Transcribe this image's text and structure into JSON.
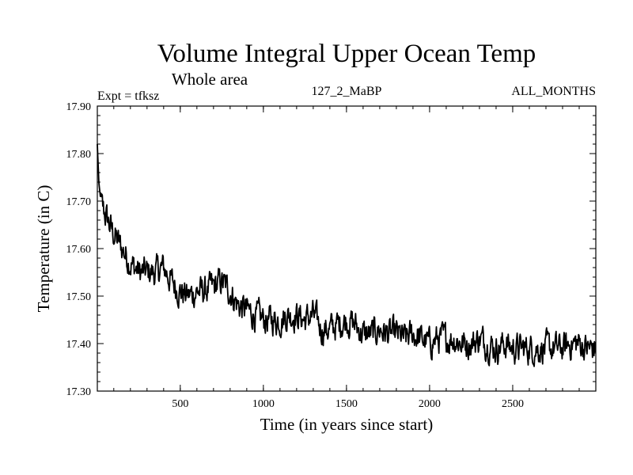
{
  "colors": {
    "line": "#000000",
    "background": "#ffffff",
    "axes": "#000000"
  },
  "chart_data": {
    "type": "line",
    "title": "Volume Integral Upper Ocean Temp",
    "subtitle": "Whole area",
    "experiment_label": "Expt = tfksz",
    "run_label": "127_2_MaBP",
    "months_label": "ALL_MONTHS",
    "xlabel": "Time (in years since start)",
    "ylabel": "Temperature (in C)",
    "xlim": [
      1,
      3000
    ],
    "ylim": [
      17.3,
      17.9
    ],
    "xticks": [
      500,
      1000,
      1500,
      2000,
      2500
    ],
    "xtick_labels": [
      "500",
      "1000",
      "1500",
      "2000",
      "2500"
    ],
    "yticks": [
      17.3,
      17.4,
      17.5,
      17.6,
      17.7,
      17.8,
      17.9
    ],
    "ytick_labels": [
      "17.30",
      "17.40",
      "17.50",
      "17.60",
      "17.70",
      "17.80",
      "17.90"
    ],
    "grid": false,
    "series": [
      {
        "name": "Volume integral upper ocean temperature",
        "x": [
          1,
          10,
          25,
          50,
          100,
          150,
          200,
          250,
          300,
          350,
          400,
          450,
          500,
          550,
          600,
          650,
          700,
          750,
          800,
          850,
          900,
          950,
          1000,
          1050,
          1100,
          1150,
          1200,
          1250,
          1300,
          1350,
          1400,
          1450,
          1500,
          1550,
          1600,
          1650,
          1700,
          1750,
          1800,
          1850,
          1900,
          1950,
          2000,
          2050,
          2100,
          2150,
          2200,
          2250,
          2300,
          2350,
          2400,
          2450,
          2500,
          2550,
          2600,
          2650,
          2700,
          2750,
          2800,
          2850,
          2900,
          2950,
          3000
        ],
        "values": [
          17.82,
          17.74,
          17.69,
          17.67,
          17.63,
          17.6,
          17.57,
          17.55,
          17.55,
          17.55,
          17.56,
          17.53,
          17.51,
          17.5,
          17.51,
          17.51,
          17.52,
          17.53,
          17.51,
          17.48,
          17.47,
          17.46,
          17.45,
          17.45,
          17.45,
          17.46,
          17.46,
          17.45,
          17.46,
          17.43,
          17.43,
          17.44,
          17.45,
          17.44,
          17.42,
          17.42,
          17.43,
          17.42,
          17.42,
          17.41,
          17.42,
          17.41,
          17.4,
          17.41,
          17.41,
          17.41,
          17.4,
          17.4,
          17.41,
          17.4,
          17.39,
          17.4,
          17.39,
          17.39,
          17.39,
          17.39,
          17.39,
          17.39,
          17.39,
          17.4,
          17.4,
          17.39,
          17.39
        ]
      }
    ]
  }
}
